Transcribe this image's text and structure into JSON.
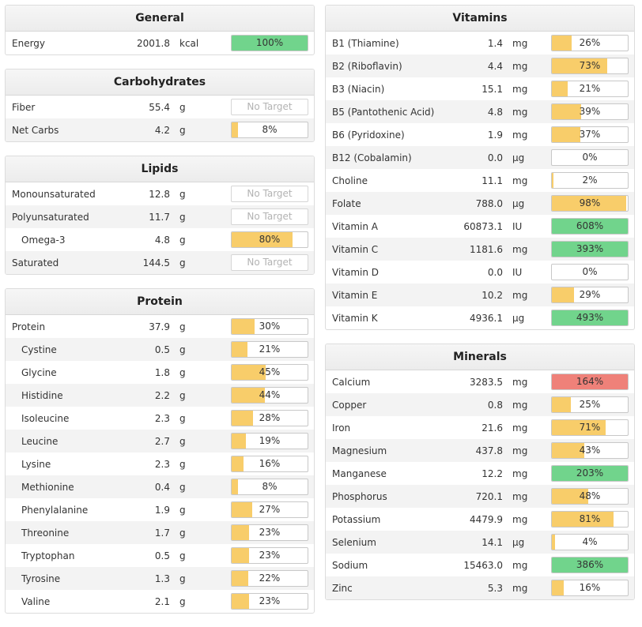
{
  "colors": {
    "green": "#71d48c",
    "yellow": "#f8cd6a",
    "red": "#ef8179"
  },
  "general": {
    "title": "General",
    "rows": [
      {
        "name": "Energy",
        "amount": "2001.8",
        "unit": "kcal",
        "pct": 100,
        "label": "100%",
        "color": "green"
      }
    ]
  },
  "carbohydrates": {
    "title": "Carbohydrates",
    "rows": [
      {
        "name": "Fiber",
        "amount": "55.4",
        "unit": "g",
        "pct": null,
        "label": "No Target"
      },
      {
        "name": "Net Carbs",
        "amount": "4.2",
        "unit": "g",
        "pct": 8,
        "label": "8%",
        "color": "yellow"
      }
    ]
  },
  "lipids": {
    "title": "Lipids",
    "rows": [
      {
        "name": "Monounsaturated",
        "amount": "12.8",
        "unit": "g",
        "pct": null,
        "label": "No Target"
      },
      {
        "name": "Polyunsaturated",
        "amount": "11.7",
        "unit": "g",
        "pct": null,
        "label": "No Target"
      },
      {
        "name": "Omega-3",
        "amount": "4.8",
        "unit": "g",
        "pct": 80,
        "label": "80%",
        "color": "yellow",
        "indent": true
      },
      {
        "name": "Saturated",
        "amount": "144.5",
        "unit": "g",
        "pct": null,
        "label": "No Target"
      }
    ]
  },
  "protein": {
    "title": "Protein",
    "rows": [
      {
        "name": "Protein",
        "amount": "37.9",
        "unit": "g",
        "pct": 30,
        "label": "30%",
        "color": "yellow"
      },
      {
        "name": "Cystine",
        "amount": "0.5",
        "unit": "g",
        "pct": 21,
        "label": "21%",
        "color": "yellow",
        "indent": true
      },
      {
        "name": "Glycine",
        "amount": "1.8",
        "unit": "g",
        "pct": 45,
        "label": "45%",
        "color": "yellow",
        "indent": true
      },
      {
        "name": "Histidine",
        "amount": "2.2",
        "unit": "g",
        "pct": 44,
        "label": "44%",
        "color": "yellow",
        "indent": true
      },
      {
        "name": "Isoleucine",
        "amount": "2.3",
        "unit": "g",
        "pct": 28,
        "label": "28%",
        "color": "yellow",
        "indent": true
      },
      {
        "name": "Leucine",
        "amount": "2.7",
        "unit": "g",
        "pct": 19,
        "label": "19%",
        "color": "yellow",
        "indent": true
      },
      {
        "name": "Lysine",
        "amount": "2.3",
        "unit": "g",
        "pct": 16,
        "label": "16%",
        "color": "yellow",
        "indent": true
      },
      {
        "name": "Methionine",
        "amount": "0.4",
        "unit": "g",
        "pct": 8,
        "label": "8%",
        "color": "yellow",
        "indent": true
      },
      {
        "name": "Phenylalanine",
        "amount": "1.9",
        "unit": "g",
        "pct": 27,
        "label": "27%",
        "color": "yellow",
        "indent": true
      },
      {
        "name": "Threonine",
        "amount": "1.7",
        "unit": "g",
        "pct": 23,
        "label": "23%",
        "color": "yellow",
        "indent": true
      },
      {
        "name": "Tryptophan",
        "amount": "0.5",
        "unit": "g",
        "pct": 23,
        "label": "23%",
        "color": "yellow",
        "indent": true
      },
      {
        "name": "Tyrosine",
        "amount": "1.3",
        "unit": "g",
        "pct": 22,
        "label": "22%",
        "color": "yellow",
        "indent": true
      },
      {
        "name": "Valine",
        "amount": "2.1",
        "unit": "g",
        "pct": 23,
        "label": "23%",
        "color": "yellow",
        "indent": true
      }
    ]
  },
  "vitamins": {
    "title": "Vitamins",
    "rows": [
      {
        "name": "B1 (Thiamine)",
        "amount": "1.4",
        "unit": "mg",
        "pct": 26,
        "label": "26%",
        "color": "yellow"
      },
      {
        "name": "B2 (Riboflavin)",
        "amount": "4.4",
        "unit": "mg",
        "pct": 73,
        "label": "73%",
        "color": "yellow"
      },
      {
        "name": "B3 (Niacin)",
        "amount": "15.1",
        "unit": "mg",
        "pct": 21,
        "label": "21%",
        "color": "yellow"
      },
      {
        "name": "B5 (Pantothenic Acid)",
        "amount": "4.8",
        "unit": "mg",
        "pct": 39,
        "label": "39%",
        "color": "yellow"
      },
      {
        "name": "B6 (Pyridoxine)",
        "amount": "1.9",
        "unit": "mg",
        "pct": 37,
        "label": "37%",
        "color": "yellow"
      },
      {
        "name": "B12 (Cobalamin)",
        "amount": "0.0",
        "unit": "µg",
        "pct": 0,
        "label": "0%",
        "color": "yellow"
      },
      {
        "name": "Choline",
        "amount": "11.1",
        "unit": "mg",
        "pct": 2,
        "label": "2%",
        "color": "yellow"
      },
      {
        "name": "Folate",
        "amount": "788.0",
        "unit": "µg",
        "pct": 98,
        "label": "98%",
        "color": "yellow"
      },
      {
        "name": "Vitamin A",
        "amount": "60873.1",
        "unit": "IU",
        "pct": 100,
        "label": "608%",
        "color": "green"
      },
      {
        "name": "Vitamin C",
        "amount": "1181.6",
        "unit": "mg",
        "pct": 100,
        "label": "393%",
        "color": "green"
      },
      {
        "name": "Vitamin D",
        "amount": "0.0",
        "unit": "IU",
        "pct": 0,
        "label": "0%",
        "color": "yellow"
      },
      {
        "name": "Vitamin E",
        "amount": "10.2",
        "unit": "mg",
        "pct": 29,
        "label": "29%",
        "color": "yellow"
      },
      {
        "name": "Vitamin K",
        "amount": "4936.1",
        "unit": "µg",
        "pct": 100,
        "label": "493%",
        "color": "green"
      }
    ]
  },
  "minerals": {
    "title": "Minerals",
    "rows": [
      {
        "name": "Calcium",
        "amount": "3283.5",
        "unit": "mg",
        "pct": 100,
        "label": "164%",
        "color": "red"
      },
      {
        "name": "Copper",
        "amount": "0.8",
        "unit": "mg",
        "pct": 25,
        "label": "25%",
        "color": "yellow"
      },
      {
        "name": "Iron",
        "amount": "21.6",
        "unit": "mg",
        "pct": 71,
        "label": "71%",
        "color": "yellow"
      },
      {
        "name": "Magnesium",
        "amount": "437.8",
        "unit": "mg",
        "pct": 43,
        "label": "43%",
        "color": "yellow"
      },
      {
        "name": "Manganese",
        "amount": "12.2",
        "unit": "mg",
        "pct": 100,
        "label": "203%",
        "color": "green"
      },
      {
        "name": "Phosphorus",
        "amount": "720.1",
        "unit": "mg",
        "pct": 48,
        "label": "48%",
        "color": "yellow"
      },
      {
        "name": "Potassium",
        "amount": "4479.9",
        "unit": "mg",
        "pct": 81,
        "label": "81%",
        "color": "yellow"
      },
      {
        "name": "Selenium",
        "amount": "14.1",
        "unit": "µg",
        "pct": 4,
        "label": "4%",
        "color": "yellow"
      },
      {
        "name": "Sodium",
        "amount": "15463.0",
        "unit": "mg",
        "pct": 100,
        "label": "386%",
        "color": "green"
      },
      {
        "name": "Zinc",
        "amount": "5.3",
        "unit": "mg",
        "pct": 16,
        "label": "16%",
        "color": "yellow"
      }
    ]
  }
}
